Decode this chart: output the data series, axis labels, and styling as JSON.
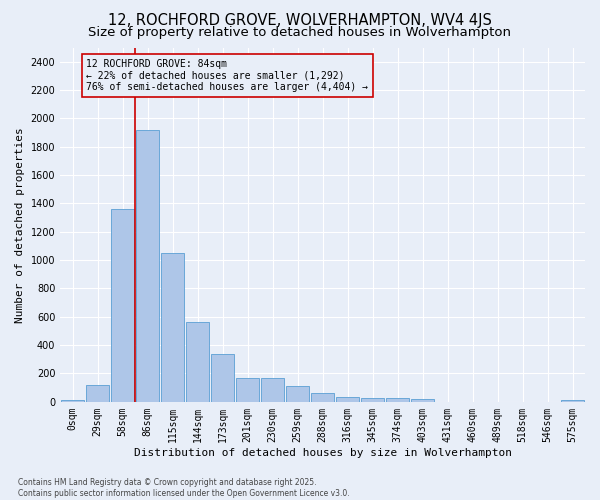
{
  "title_line1": "12, ROCHFORD GROVE, WOLVERHAMPTON, WV4 4JS",
  "title_line2": "Size of property relative to detached houses in Wolverhampton",
  "xlabel": "Distribution of detached houses by size in Wolverhampton",
  "ylabel": "Number of detached properties",
  "footer_line1": "Contains HM Land Registry data © Crown copyright and database right 2025.",
  "footer_line2": "Contains public sector information licensed under the Open Government Licence v3.0.",
  "bar_labels": [
    "0sqm",
    "29sqm",
    "58sqm",
    "86sqm",
    "115sqm",
    "144sqm",
    "173sqm",
    "201sqm",
    "230sqm",
    "259sqm",
    "288sqm",
    "316sqm",
    "345sqm",
    "374sqm",
    "403sqm",
    "431sqm",
    "460sqm",
    "489sqm",
    "518sqm",
    "546sqm",
    "575sqm"
  ],
  "bar_values": [
    10,
    120,
    1360,
    1920,
    1050,
    560,
    335,
    165,
    170,
    110,
    60,
    35,
    30,
    25,
    20,
    0,
    0,
    0,
    0,
    0,
    10
  ],
  "bar_color": "#aec6e8",
  "bar_edge_color": "#5a9fd4",
  "background_color": "#e8eef8",
  "vline_color": "#cc0000",
  "annotation_text": "12 ROCHFORD GROVE: 84sqm\n← 22% of detached houses are smaller (1,292)\n76% of semi-detached houses are larger (4,404) →",
  "annotation_box_color": "#cc0000",
  "ylim": [
    0,
    2500
  ],
  "yticks": [
    0,
    200,
    400,
    600,
    800,
    1000,
    1200,
    1400,
    1600,
    1800,
    2000,
    2200,
    2400
  ],
  "grid_color": "#ffffff",
  "title_fontsize": 10.5,
  "subtitle_fontsize": 9.5,
  "axis_label_fontsize": 8,
  "tick_fontsize": 7,
  "annotation_fontsize": 7,
  "footer_fontsize": 5.5
}
